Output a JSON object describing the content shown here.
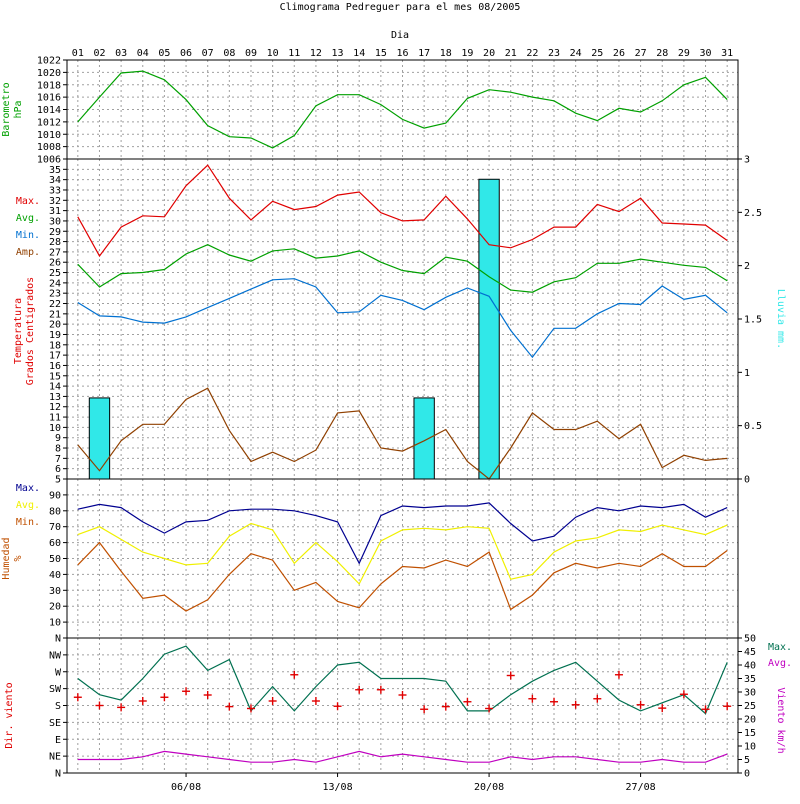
{
  "title": "Climograma Pedreguer para el mes 08/2005",
  "x_axis_title": "Dia",
  "days": [
    "01",
    "02",
    "03",
    "04",
    "05",
    "06",
    "07",
    "08",
    "09",
    "10",
    "11",
    "12",
    "13",
    "14",
    "15",
    "16",
    "17",
    "18",
    "19",
    "20",
    "21",
    "22",
    "23",
    "24",
    "25",
    "26",
    "27",
    "28",
    "29",
    "30",
    "31"
  ],
  "bottom_date_labels": [
    {
      "day": 6,
      "label": "06/08"
    },
    {
      "day": 13,
      "label": "13/08"
    },
    {
      "day": 20,
      "label": "20/08"
    },
    {
      "day": 27,
      "label": "27/08"
    }
  ],
  "colors": {
    "red": "#e00000",
    "green": "#00a000",
    "blue": "#0070d0",
    "brown": "#904000",
    "cyan": "#30e8e8",
    "navy": "#000090",
    "yellow": "#f0f000",
    "orange": "#c05000",
    "teal": "#007050",
    "magenta": "#c000c0",
    "grid": "#a0a0a0"
  },
  "chart_data": [
    {
      "type": "line",
      "id": "barometer",
      "ylabel_lines": [
        "Barometro",
        "hPa"
      ],
      "ylim": [
        1006,
        1022
      ],
      "yticks": [
        1006,
        1008,
        1010,
        1012,
        1014,
        1016,
        1018,
        1020,
        1022
      ],
      "series": [
        {
          "color": "green",
          "values": [
            1012,
            1016,
            1019.9,
            1020.2,
            1018.8,
            1015.6,
            1011.4,
            1009.6,
            1009.4,
            1007.8,
            1009.8,
            1014.6,
            1016.4,
            1016.4,
            1014.8,
            1012.4,
            1011,
            1011.8,
            1015.8,
            1017.2,
            1016.8,
            1016,
            1015.4,
            1013.4,
            1012.2,
            1014.2,
            1013.6,
            1015.4,
            1018,
            1019.2,
            1015.6
          ]
        }
      ]
    },
    {
      "type": "line",
      "id": "temperature",
      "ylabel_lines": [
        "Temperatura",
        "Grados Centigrados"
      ],
      "ylabel_right": "Lluvia mm.",
      "ylim": [
        5,
        36
      ],
      "yticks": [
        5,
        6,
        7,
        8,
        9,
        10,
        11,
        12,
        13,
        14,
        15,
        16,
        17,
        18,
        19,
        20,
        21,
        22,
        23,
        24,
        25,
        26,
        27,
        28,
        29,
        30,
        31,
        32,
        33,
        34,
        35
      ],
      "y2lim": [
        0,
        3
      ],
      "y2ticks": [
        0,
        0.5,
        1,
        1.5,
        2,
        2.5,
        3
      ],
      "y2tick_labels": [
        "0",
        "0.5",
        "1",
        "1.5",
        "2",
        "2.5",
        "3"
      ],
      "legend": [
        {
          "label": "Max.",
          "color": "red"
        },
        {
          "label": "Avg.",
          "color": "green"
        },
        {
          "label": "Min.",
          "color": "blue"
        },
        {
          "label": "Amp.",
          "color": "brown"
        }
      ],
      "series": [
        {
          "name": "Max.",
          "color": "red",
          "values": [
            30.4,
            26.6,
            29.4,
            30.5,
            30.4,
            33.4,
            35.4,
            32.2,
            30.1,
            31.9,
            31.1,
            31.4,
            32.5,
            32.8,
            30.8,
            30,
            30.1,
            32.4,
            30.2,
            27.7,
            27.4,
            28.2,
            29.4,
            29.4,
            31.6,
            30.9,
            32.2,
            29.8,
            29.7,
            29.6,
            28.1
          ]
        },
        {
          "name": "Avg.",
          "color": "green",
          "values": [
            25.8,
            23.6,
            24.9,
            25,
            25.3,
            26.8,
            27.7,
            26.7,
            26.1,
            27.1,
            27.3,
            26.4,
            26.6,
            27.1,
            26,
            25.2,
            24.9,
            26.5,
            26.1,
            24.6,
            23.3,
            23.1,
            24.1,
            24.5,
            25.9,
            25.9,
            26.3,
            26,
            25.7,
            25.5,
            24.2
          ]
        },
        {
          "name": "Min.",
          "color": "blue",
          "values": [
            22.1,
            20.8,
            20.7,
            20.2,
            20.1,
            20.7,
            21.6,
            22.5,
            23.4,
            24.3,
            24.4,
            23.6,
            21.1,
            21.2,
            22.8,
            22.3,
            21.4,
            22.6,
            23.5,
            22.7,
            19.4,
            16.8,
            19.6,
            19.6,
            21,
            22,
            21.9,
            23.7,
            22.4,
            22.8,
            21.1
          ]
        },
        {
          "name": "Amp.",
          "color": "brown",
          "values": [
            8.3,
            5.8,
            8.7,
            10.3,
            10.3,
            12.7,
            13.8,
            9.7,
            6.7,
            7.6,
            6.7,
            7.8,
            11.4,
            11.6,
            8,
            7.7,
            8.7,
            9.8,
            6.7,
            5,
            8,
            11.4,
            9.8,
            9.8,
            10.6,
            8.9,
            10.3,
            6.1,
            7.3,
            6.8,
            7
          ]
        }
      ],
      "rain_bars": [
        {
          "day": 2,
          "value": 0.76
        },
        {
          "day": 17,
          "value": 0.76
        },
        {
          "day": 20,
          "value": 2.81
        }
      ]
    },
    {
      "type": "line",
      "id": "humidity",
      "ylabel_lines": [
        "Humedad",
        "%"
      ],
      "ylim": [
        0,
        100
      ],
      "yticks": [
        10,
        20,
        30,
        40,
        50,
        60,
        70,
        80,
        90
      ],
      "legend": [
        {
          "label": "Max.",
          "color": "navy"
        },
        {
          "label": "Avg.",
          "color": "yellow"
        },
        {
          "label": "Min.",
          "color": "orange"
        }
      ],
      "series": [
        {
          "name": "Max.",
          "color": "navy",
          "values": [
            81,
            84,
            82,
            73,
            66,
            73,
            74,
            80,
            81,
            81,
            80,
            77,
            73,
            47,
            77,
            83,
            82,
            83,
            83,
            85,
            72,
            61,
            64,
            76,
            82,
            80,
            83,
            82,
            84,
            76,
            82
          ]
        },
        {
          "name": "Avg.",
          "color": "yellow",
          "values": [
            65,
            70,
            62,
            54,
            50,
            46,
            47,
            64,
            72,
            68,
            47,
            60,
            48,
            34,
            61,
            68,
            69,
            68,
            70,
            69,
            37,
            40,
            54,
            61,
            63,
            68,
            67,
            71,
            68,
            65,
            71
          ]
        },
        {
          "name": "Min.",
          "color": "orange",
          "values": [
            46,
            60,
            42,
            25,
            27,
            17,
            24,
            40,
            53,
            49,
            30,
            35,
            23,
            19,
            34,
            45,
            44,
            49,
            45,
            54,
            18,
            27,
            41,
            47,
            44,
            47,
            45,
            53,
            45,
            45,
            55
          ]
        }
      ]
    },
    {
      "type": "line",
      "id": "wind",
      "ylabel": "Dir. viento",
      "ylabel_right": "Viento km/h",
      "ylim": [
        0,
        50
      ],
      "direction_labels": [
        "N",
        "NE",
        "E",
        "SE",
        "S",
        "SW",
        "W",
        "NW",
        "N"
      ],
      "y2ticks": [
        0,
        5,
        10,
        15,
        20,
        25,
        30,
        35,
        40,
        45,
        50
      ],
      "legend": [
        {
          "label": "Max.",
          "color": "teal"
        },
        {
          "label": "Avg.",
          "color": "magenta"
        }
      ],
      "series": [
        {
          "name": "Max.",
          "color": "teal",
          "values": [
            35,
            29,
            27,
            35,
            44,
            47,
            38,
            42,
            23,
            32,
            23,
            32,
            40,
            41,
            35,
            35,
            35,
            34,
            23,
            23,
            29,
            34,
            38,
            41,
            34,
            27,
            23,
            26,
            29,
            22,
            41
          ]
        },
        {
          "name": "Avg.",
          "color": "magenta",
          "values": [
            5,
            5,
            5,
            6,
            8,
            7,
            6,
            5,
            4,
            4,
            5,
            4,
            6,
            8,
            6,
            7,
            6,
            5,
            4,
            4,
            6,
            5,
            6,
            6,
            5,
            4,
            4,
            5,
            4,
            4,
            7
          ]
        },
        {
          "name": "Dir.",
          "type": "scatter",
          "marker": "+",
          "color": "red",
          "values_deg": [
            202,
            180,
            175,
            192,
            202,
            218,
            208,
            177,
            172,
            192,
            262,
            192,
            178,
            222,
            222,
            208,
            170,
            177,
            190,
            172,
            260,
            198,
            190,
            182,
            198,
            262,
            182,
            173,
            210,
            170,
            178
          ]
        }
      ]
    }
  ]
}
